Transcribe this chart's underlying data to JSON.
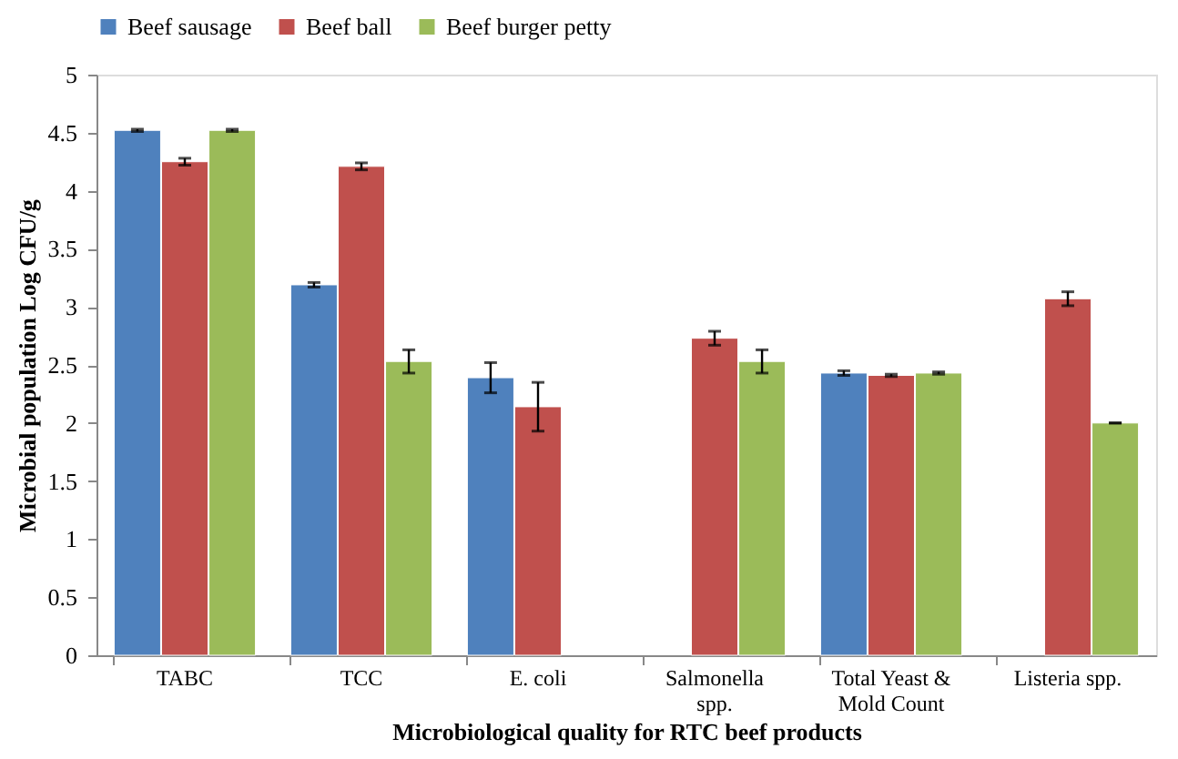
{
  "chart_data": {
    "type": "bar",
    "xlabel": "Microbiological quality  for RTC beef products",
    "ylabel": "Microbial population Log CFU/g",
    "categories": [
      "TABC",
      "TCC",
      "E. coli",
      "Salmonella spp.",
      "Total Yeast & Mold Count",
      "Listeria spp."
    ],
    "series": [
      {
        "name": "Beef sausage",
        "color": "#4f81bd",
        "values": [
          4.52,
          3.19,
          2.39,
          null,
          2.43,
          null
        ],
        "errors": [
          0.01,
          0.02,
          0.13,
          null,
          0.02,
          null
        ]
      },
      {
        "name": "Beef ball",
        "color": "#c0504d",
        "values": [
          4.25,
          4.21,
          2.14,
          2.73,
          2.41,
          3.07
        ],
        "errors": [
          0.03,
          0.03,
          0.21,
          0.06,
          0.01,
          0.06
        ]
      },
      {
        "name": "Beef burger petty",
        "color": "#9bbb59",
        "values": [
          4.52,
          2.53,
          null,
          2.53,
          2.43,
          2.0
        ],
        "errors": [
          0.01,
          0.1,
          null,
          0.1,
          0.01,
          0.0
        ]
      }
    ],
    "ylim": [
      0,
      5
    ],
    "yticks": [
      0,
      0.5,
      1,
      1.5,
      2,
      2.5,
      3,
      3.5,
      4,
      4.5,
      5
    ],
    "grid": false,
    "legend": "top"
  }
}
